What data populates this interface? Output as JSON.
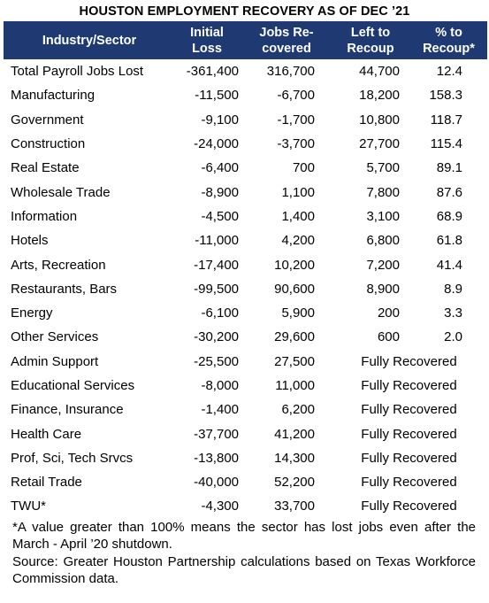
{
  "title": "HOUSTON EMPLOYMENT RECOVERY AS OF DEC ’21",
  "headers": {
    "industry": "Industry/Sector",
    "initial_loss": [
      "Initial",
      "Loss"
    ],
    "jobs_recovered": [
      "Jobs Re-",
      "covered"
    ],
    "left_to_recoup": [
      "Left to",
      "Recoup"
    ],
    "pct_to_recoup": [
      "% to",
      "Recoup*"
    ]
  },
  "rows": [
    {
      "industry": "Total Payroll Jobs Lost",
      "initial_loss": "-361,400",
      "jobs_recovered": "316,700",
      "left_to_recoup": "44,700",
      "pct_to_recoup": "12.4"
    },
    {
      "industry": "Manufacturing",
      "initial_loss": "-11,500",
      "jobs_recovered": "-6,700",
      "left_to_recoup": "18,200",
      "pct_to_recoup": "158.3"
    },
    {
      "industry": "Government",
      "initial_loss": "-9,100",
      "jobs_recovered": "-1,700",
      "left_to_recoup": "10,800",
      "pct_to_recoup": "118.7"
    },
    {
      "industry": "Construction",
      "initial_loss": "-24,000",
      "jobs_recovered": "-3,700",
      "left_to_recoup": "27,700",
      "pct_to_recoup": "115.4"
    },
    {
      "industry": "Real Estate",
      "initial_loss": "-6,400",
      "jobs_recovered": "700",
      "left_to_recoup": "5,700",
      "pct_to_recoup": "89.1"
    },
    {
      "industry": "Wholesale Trade",
      "initial_loss": "-8,900",
      "jobs_recovered": "1,100",
      "left_to_recoup": "7,800",
      "pct_to_recoup": "87.6"
    },
    {
      "industry": "Information",
      "initial_loss": "-4,500",
      "jobs_recovered": "1,400",
      "left_to_recoup": "3,100",
      "pct_to_recoup": "68.9"
    },
    {
      "industry": "Hotels",
      "initial_loss": "-11,000",
      "jobs_recovered": "4,200",
      "left_to_recoup": "6,800",
      "pct_to_recoup": "61.8"
    },
    {
      "industry": "Arts, Recreation",
      "initial_loss": "-17,400",
      "jobs_recovered": "10,200",
      "left_to_recoup": "7,200",
      "pct_to_recoup": "41.4"
    },
    {
      "industry": "Restaurants, Bars",
      "initial_loss": "-99,500",
      "jobs_recovered": "90,600",
      "left_to_recoup": "8,900",
      "pct_to_recoup": "8.9"
    },
    {
      "industry": "Energy",
      "initial_loss": "-6,100",
      "jobs_recovered": "5,900",
      "left_to_recoup": "200",
      "pct_to_recoup": "3.3"
    },
    {
      "industry": "Other Services",
      "initial_loss": "-30,200",
      "jobs_recovered": "29,600",
      "left_to_recoup": "600",
      "pct_to_recoup": "2.0"
    },
    {
      "industry": "Admin Support",
      "initial_loss": "-25,500",
      "jobs_recovered": "27,500",
      "status": "Fully Recovered"
    },
    {
      "industry": "Educational Services",
      "initial_loss": "-8,000",
      "jobs_recovered": "11,000",
      "status": "Fully Recovered"
    },
    {
      "industry": "Finance, Insurance",
      "initial_loss": "-1,400",
      "jobs_recovered": "6,200",
      "status": "Fully Recovered"
    },
    {
      "industry": "Health Care",
      "initial_loss": "-37,700",
      "jobs_recovered": "41,200",
      "status": "Fully Recovered"
    },
    {
      "industry": "Prof, Sci, Tech Srvcs",
      "initial_loss": "-13,800",
      "jobs_recovered": "14,300",
      "status": "Fully Recovered"
    },
    {
      "industry": "Retail Trade",
      "initial_loss": "-40,000",
      "jobs_recovered": "52,200",
      "status": "Fully Recovered"
    },
    {
      "industry": "TWU*",
      "initial_loss": "-4,300",
      "jobs_recovered": "33,700",
      "status": "Fully Recovered"
    }
  ],
  "footnote": "*A value greater than 100% means the sector has lost jobs even after the March - April ’20 shutdown.",
  "source": "Source: Greater Houston Partnership calculations based on Texas Workforce Commission data.",
  "colors": {
    "header_bg": "#1f3a73",
    "header_text": "#ffffff"
  }
}
